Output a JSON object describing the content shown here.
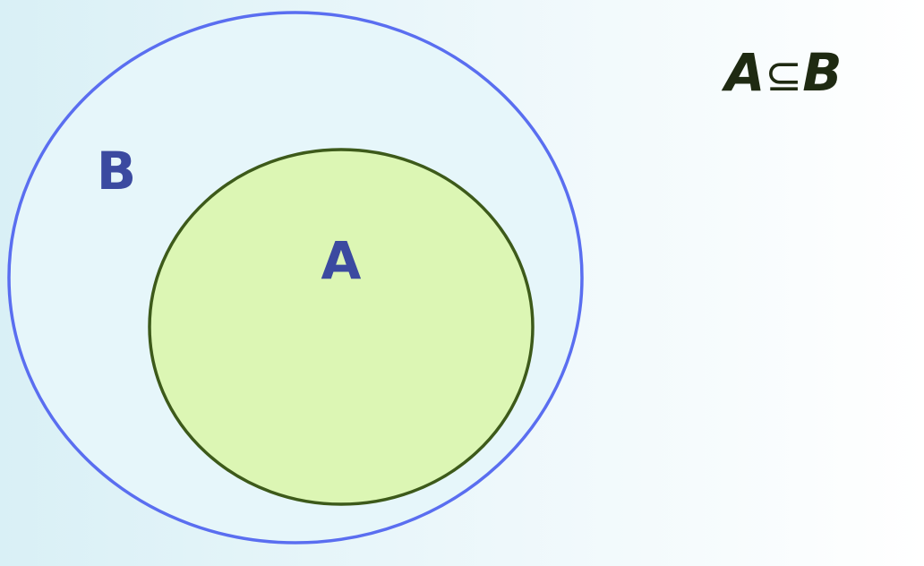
{
  "diagram": {
    "relation_label": {
      "left": "A",
      "symbol": "⊆",
      "right": "B"
    },
    "outer_set": {
      "label": "B",
      "stroke_color": "#5a6ef0",
      "fill_color": "#e6f6fa"
    },
    "inner_set": {
      "label": "A",
      "stroke_color": "#3d5a1a",
      "fill_color": "#dcf6b4"
    },
    "colors": {
      "background_left": "#d9f0f6",
      "background_right": "#ffffff",
      "label_color": "#3b4aa0",
      "notation_color": "#1f2a12"
    }
  }
}
